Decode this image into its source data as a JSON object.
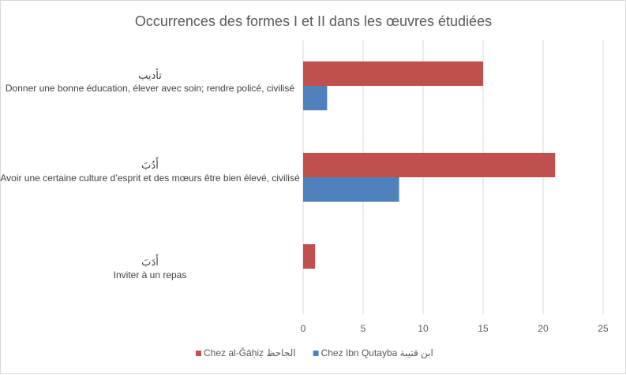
{
  "chart_data": {
    "type": "bar",
    "orientation": "horizontal",
    "title": "Occurrences des formes I et II dans les œuvres étudiées",
    "categories": [
      {
        "arabic": "تأديب",
        "label": "Donner une bonne éducation, élever avec soin; rendre policé, civilisé"
      },
      {
        "arabic": "أَدُبَ",
        "label": "Avoir une certaine culture d’esprit et des mœurs être bien élevé, civilisé"
      },
      {
        "arabic": "أَدَبَ",
        "label": "Inviter à un repas"
      }
    ],
    "series": [
      {
        "name": "Chez al-Ǧāḥiẓ الجاحظ",
        "color": "#c0504d",
        "values": [
          15,
          21,
          1
        ]
      },
      {
        "name": "Chez Ibn Qutayba ابن قتيبة",
        "color": "#4f81bd",
        "values": [
          2,
          8,
          0
        ]
      }
    ],
    "xlim": [
      0,
      25
    ],
    "xticks": [
      "0",
      "5",
      "10",
      "15",
      "20",
      "25"
    ],
    "grid": true,
    "legend_position": "bottom"
  }
}
